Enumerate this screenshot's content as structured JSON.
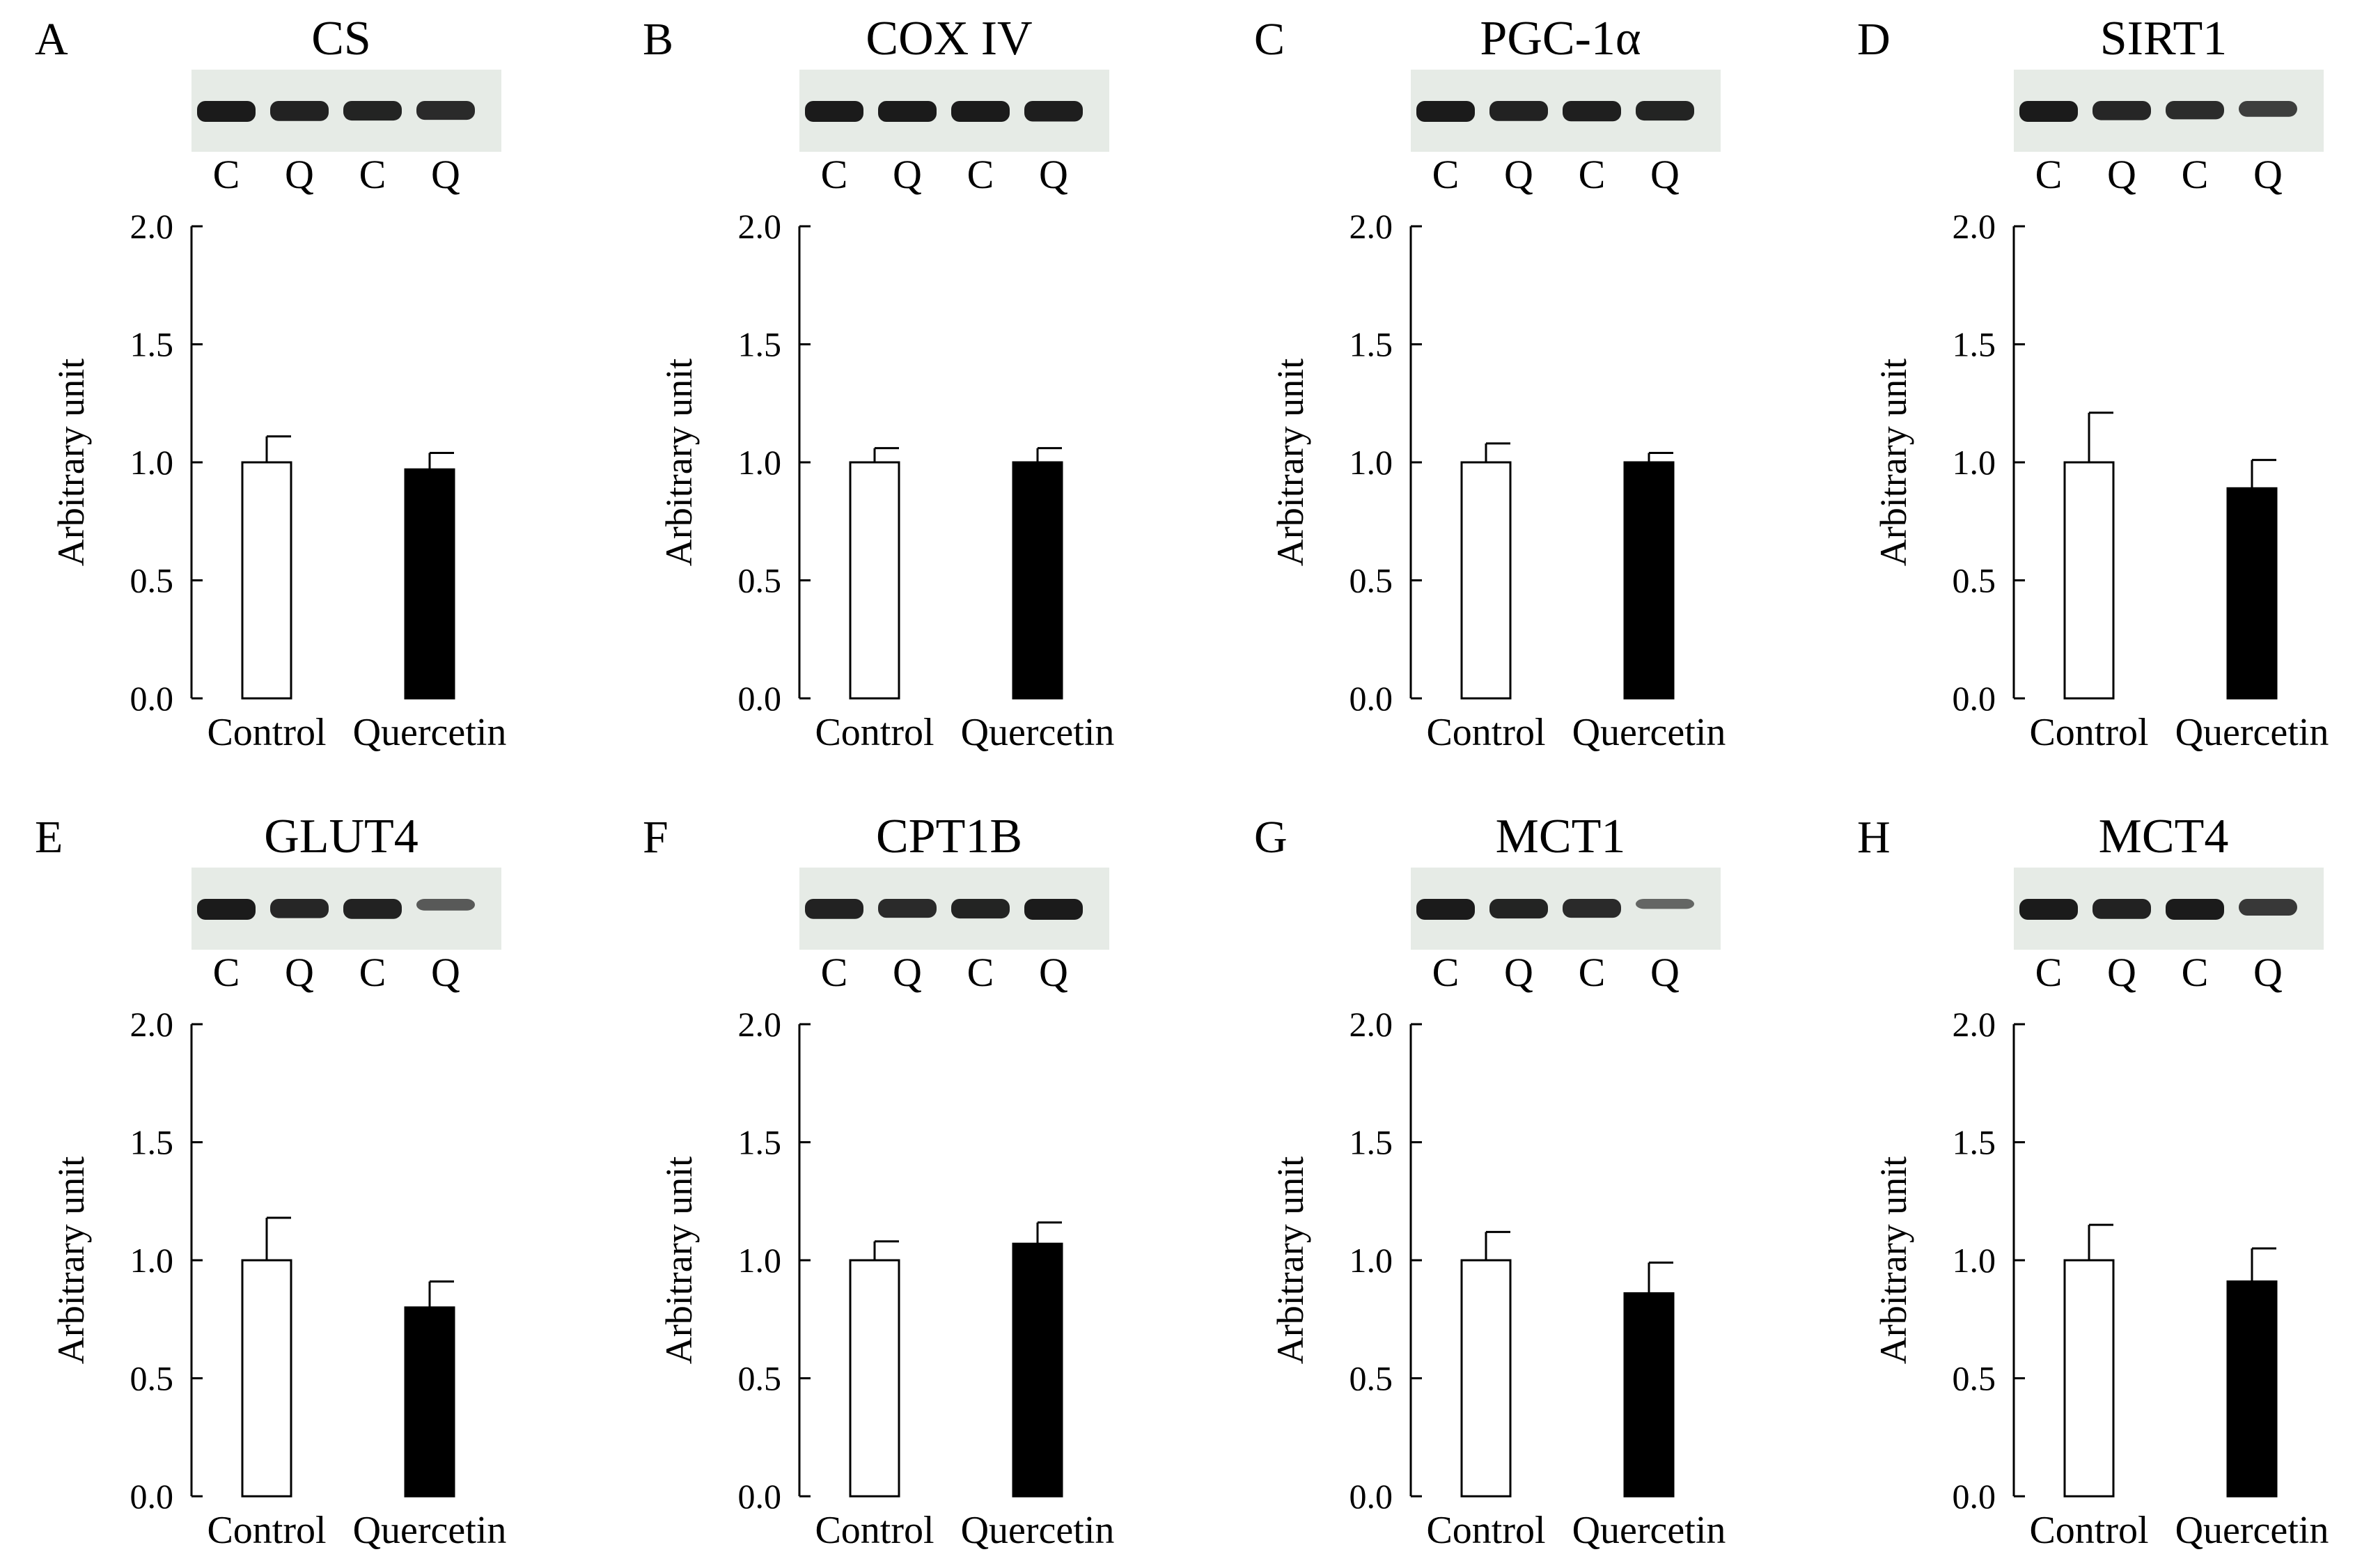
{
  "lane_labels": [
    "C",
    "Q",
    "C",
    "Q"
  ],
  "bar_fill_colors": [
    "#ffffff",
    "#000000"
  ],
  "chart_data": [
    {
      "type": "bar",
      "panel": "A",
      "title": "CS",
      "ylabel": "Arbitrary unit",
      "xlabel": "",
      "categories": [
        "Control",
        "Quercetin"
      ],
      "values": [
        1.0,
        0.97
      ],
      "errors": [
        0.11,
        0.07
      ],
      "ylim": [
        0,
        2.0
      ],
      "yticks": [
        "0.0",
        "0.5",
        "1.0",
        "1.5",
        "2.0"
      ],
      "blot_bands": [
        1.0,
        0.95,
        0.92,
        0.88
      ]
    },
    {
      "type": "bar",
      "panel": "B",
      "title": "COX IV",
      "ylabel": "Arbitrary unit",
      "xlabel": "",
      "categories": [
        "Control",
        "Quercetin"
      ],
      "values": [
        1.0,
        1.0
      ],
      "errors": [
        0.06,
        0.06
      ],
      "ylim": [
        0,
        2.0
      ],
      "yticks": [
        "0.0",
        "0.5",
        "1.0",
        "1.5",
        "2.0"
      ],
      "blot_bands": [
        1.0,
        1.0,
        1.0,
        0.98
      ]
    },
    {
      "type": "bar",
      "panel": "C",
      "title": "PGC-1α",
      "ylabel": "Arbitrary unit",
      "xlabel": "",
      "categories": [
        "Control",
        "Quercetin"
      ],
      "values": [
        1.0,
        1.0
      ],
      "errors": [
        0.08,
        0.04
      ],
      "ylim": [
        0,
        2.0
      ],
      "yticks": [
        "0.0",
        "0.5",
        "1.0",
        "1.5",
        "2.0"
      ],
      "blot_bands": [
        1.0,
        0.95,
        0.97,
        0.92
      ]
    },
    {
      "type": "bar",
      "panel": "D",
      "title": "SIRT1",
      "ylabel": "Arbitrary unit",
      "xlabel": "",
      "categories": [
        "Control",
        "Quercetin"
      ],
      "values": [
        1.0,
        0.89
      ],
      "errors": [
        0.21,
        0.12
      ],
      "ylim": [
        0,
        2.0
      ],
      "yticks": [
        "0.0",
        "0.5",
        "1.0",
        "1.5",
        "2.0"
      ],
      "blot_bands": [
        1.0,
        0.9,
        0.85,
        0.7
      ]
    },
    {
      "type": "bar",
      "panel": "E",
      "title": "GLUT4",
      "ylabel": "Arbitrary unit",
      "xlabel": "",
      "categories": [
        "Control",
        "Quercetin"
      ],
      "values": [
        1.0,
        0.8
      ],
      "errors": [
        0.18,
        0.11
      ],
      "ylim": [
        0,
        2.0
      ],
      "yticks": [
        "0.0",
        "0.5",
        "1.0",
        "1.5",
        "2.0"
      ],
      "blot_bands": [
        1.0,
        0.9,
        0.95,
        0.45
      ]
    },
    {
      "type": "bar",
      "panel": "F",
      "title": "CPT1B",
      "ylabel": "Arbitrary unit",
      "xlabel": "",
      "categories": [
        "Control",
        "Quercetin"
      ],
      "values": [
        1.0,
        1.07
      ],
      "errors": [
        0.08,
        0.09
      ],
      "ylim": [
        0,
        2.0
      ],
      "yticks": [
        "0.0",
        "0.5",
        "1.0",
        "1.5",
        "2.0"
      ],
      "blot_bands": [
        0.95,
        0.88,
        0.92,
        1.0
      ]
    },
    {
      "type": "bar",
      "panel": "G",
      "title": "MCT1",
      "ylabel": "Arbitrary unit",
      "xlabel": "",
      "categories": [
        "Control",
        "Quercetin"
      ],
      "values": [
        1.0,
        0.86
      ],
      "errors": [
        0.12,
        0.13
      ],
      "ylim": [
        0,
        2.0
      ],
      "yticks": [
        "0.0",
        "0.5",
        "1.0",
        "1.5",
        "2.0"
      ],
      "blot_bands": [
        1.0,
        0.92,
        0.88,
        0.35
      ]
    },
    {
      "type": "bar",
      "panel": "H",
      "title": "MCT4",
      "ylabel": "Arbitrary unit",
      "xlabel": "",
      "categories": [
        "Control",
        "Quercetin"
      ],
      "values": [
        1.0,
        0.91
      ],
      "errors": [
        0.15,
        0.14
      ],
      "ylim": [
        0,
        2.0
      ],
      "yticks": [
        "0.0",
        "0.5",
        "1.0",
        "1.5",
        "2.0"
      ],
      "blot_bands": [
        1.0,
        0.95,
        1.0,
        0.75
      ]
    }
  ]
}
